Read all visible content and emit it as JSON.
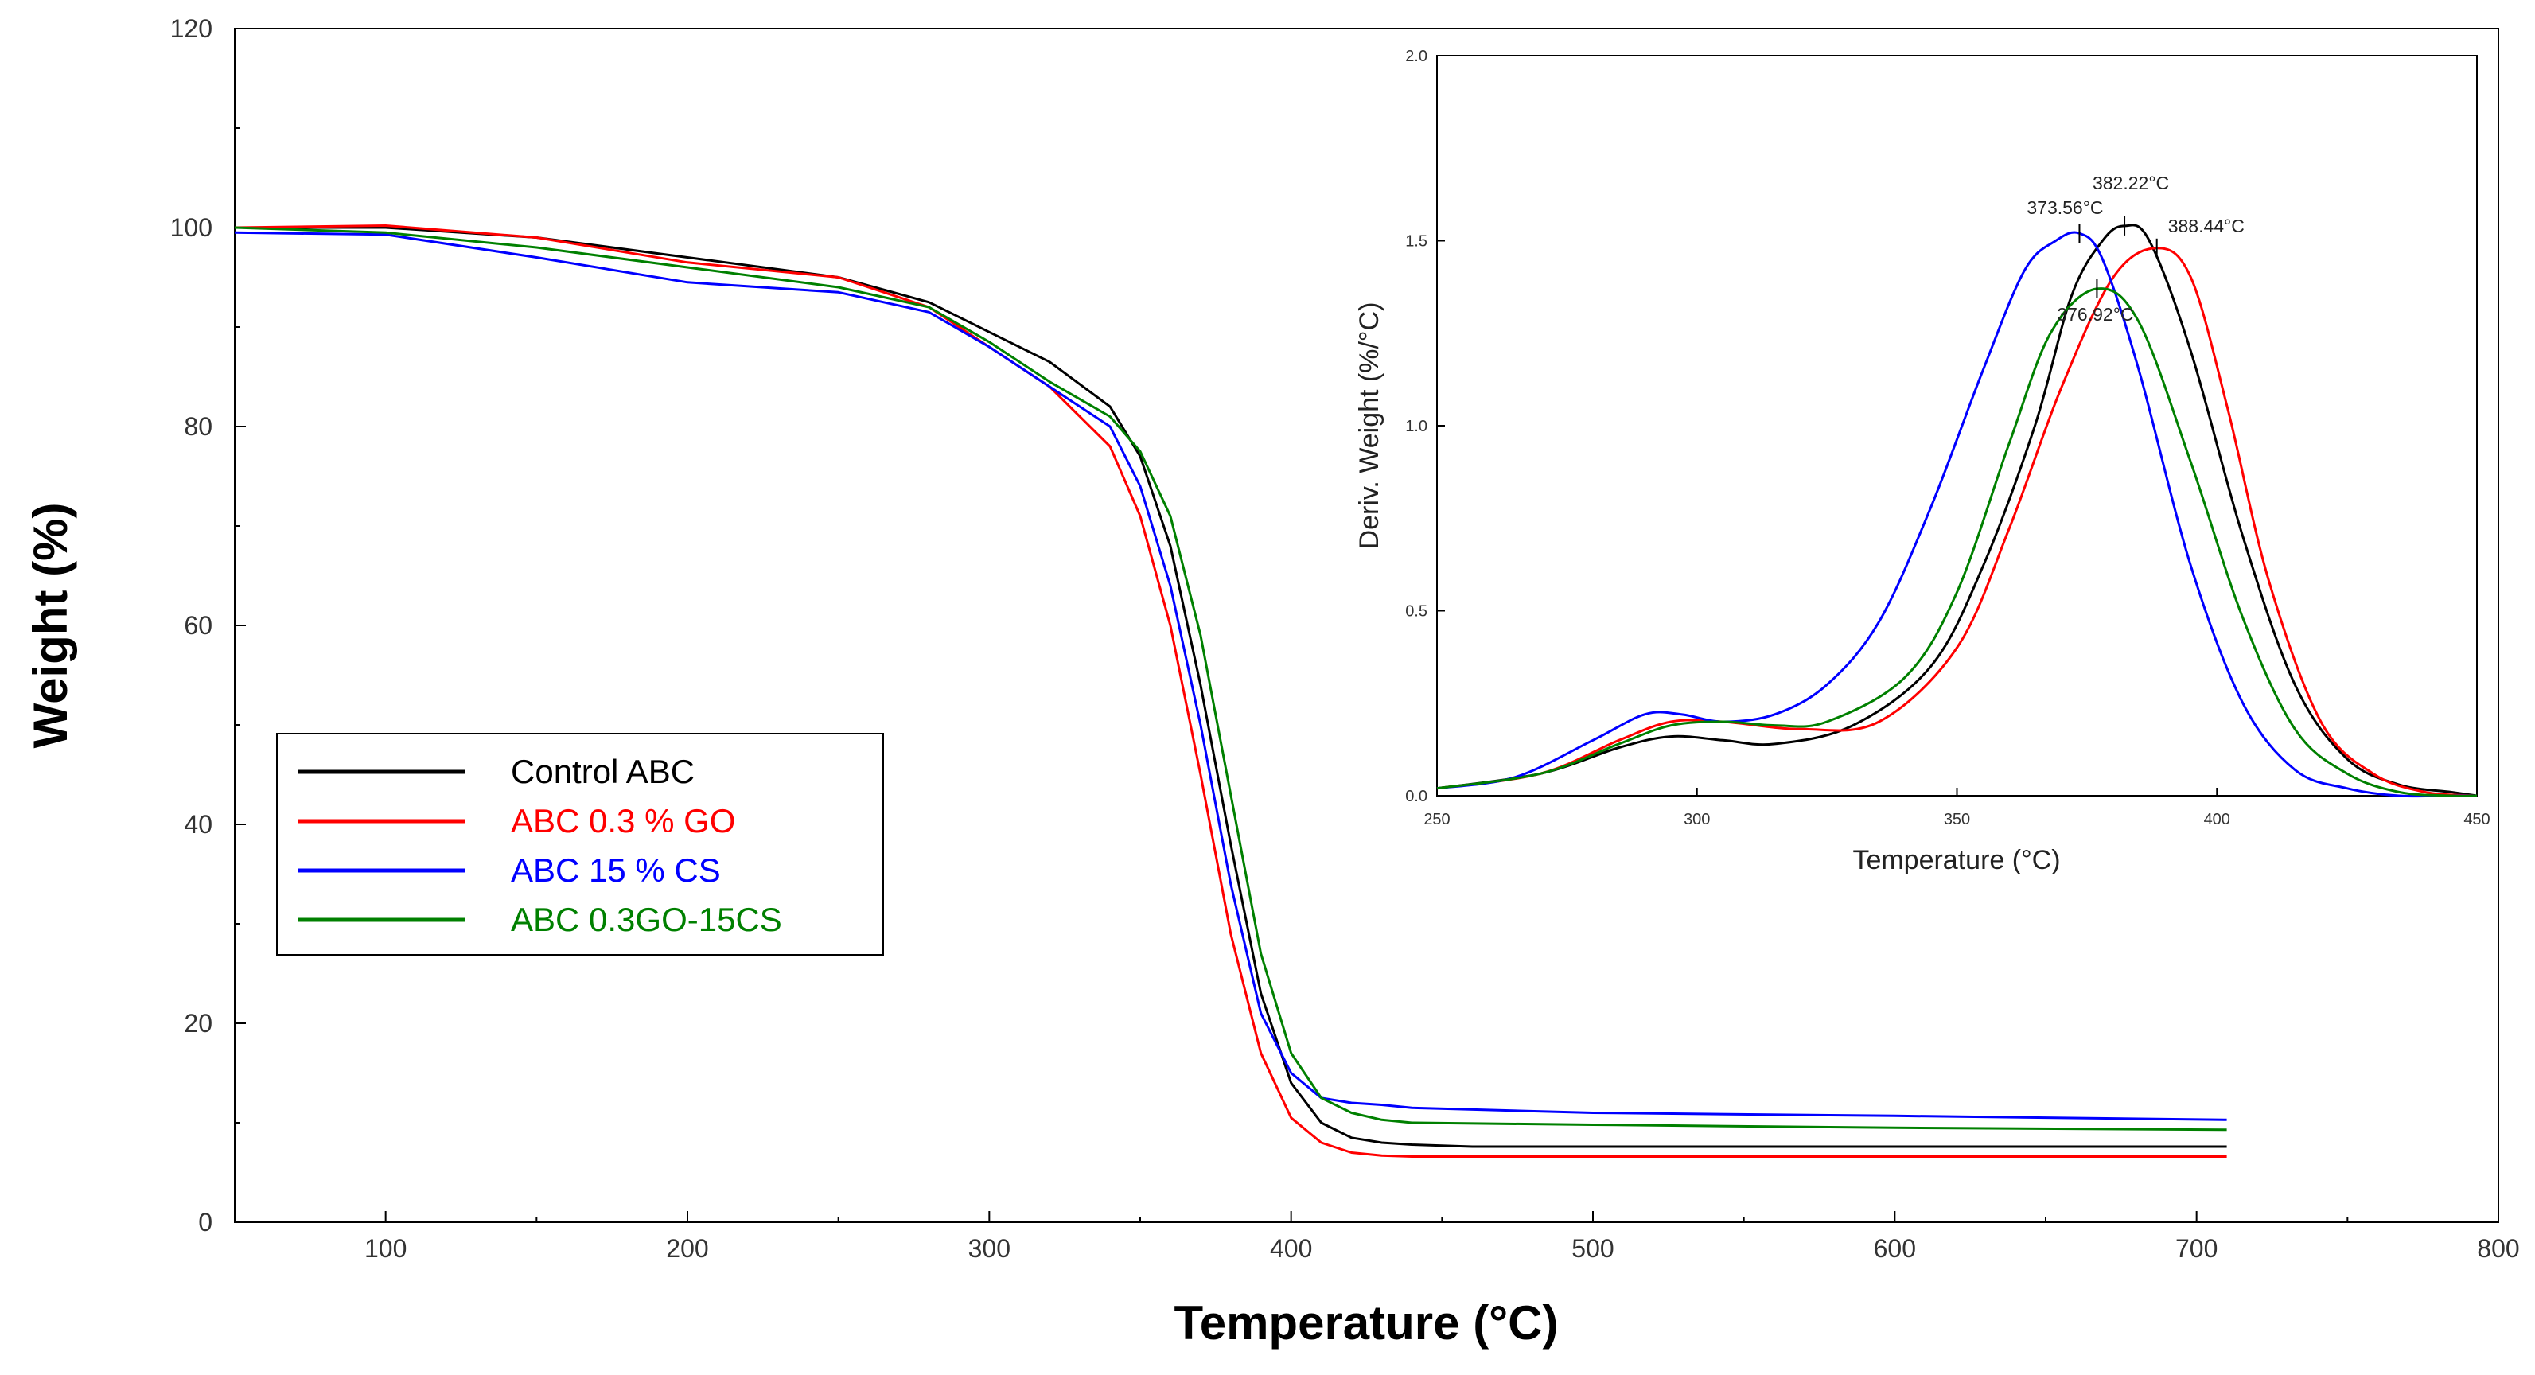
{
  "chart_data": [
    {
      "type": "line",
      "title": "",
      "xlabel": "Temperature (°C)",
      "ylabel": "Weight (%)",
      "xlim": [
        50,
        800
      ],
      "ylim": [
        0,
        120
      ],
      "xticks": [
        100,
        200,
        300,
        400,
        500,
        600,
        700,
        800
      ],
      "yticks": [
        0,
        20,
        40,
        60,
        80,
        100,
        120
      ],
      "legend_position": "middle-left",
      "series": [
        {
          "name": "Control ABC",
          "color": "#000000",
          "x": [
            50,
            100,
            150,
            200,
            250,
            280,
            300,
            320,
            340,
            350,
            360,
            370,
            380,
            390,
            400,
            410,
            420,
            430,
            440,
            460,
            710
          ],
          "y": [
            100,
            100,
            99,
            97,
            95,
            92.5,
            89.5,
            86.5,
            82,
            77,
            68,
            54,
            38,
            23,
            14,
            10,
            8.5,
            8,
            7.8,
            7.6,
            7.6
          ]
        },
        {
          "name": "ABC 0.3 % GO",
          "color": "#ff0000",
          "x": [
            50,
            100,
            150,
            200,
            250,
            280,
            300,
            320,
            340,
            350,
            360,
            370,
            380,
            390,
            400,
            410,
            420,
            430,
            440,
            460,
            710
          ],
          "y": [
            100,
            100.2,
            99,
            96.5,
            95,
            92,
            88,
            84,
            78,
            71,
            60,
            45,
            29,
            17,
            10.5,
            8,
            7,
            6.7,
            6.6,
            6.6,
            6.6
          ]
        },
        {
          "name": "ABC 15 % CS",
          "color": "#0000ff",
          "x": [
            50,
            100,
            150,
            200,
            250,
            280,
            300,
            320,
            340,
            350,
            360,
            370,
            380,
            390,
            400,
            410,
            420,
            430,
            440,
            500,
            600,
            710
          ],
          "y": [
            99.5,
            99.3,
            97,
            94.5,
            93.5,
            91.5,
            88,
            84,
            80,
            74,
            64,
            50,
            34,
            21,
            15,
            12.5,
            12,
            11.8,
            11.5,
            11,
            10.7,
            10.3
          ]
        },
        {
          "name": "ABC 0.3GO-15CS",
          "color": "#008000",
          "x": [
            50,
            100,
            150,
            200,
            250,
            280,
            300,
            320,
            340,
            350,
            360,
            370,
            380,
            390,
            400,
            410,
            420,
            430,
            440,
            500,
            600,
            710
          ],
          "y": [
            100,
            99.5,
            98,
            96,
            94,
            92,
            88.5,
            84.5,
            81,
            77.5,
            71,
            59,
            43,
            27,
            17,
            12.5,
            11,
            10.3,
            10,
            9.8,
            9.5,
            9.3
          ]
        }
      ]
    },
    {
      "type": "line",
      "title": "",
      "xlabel": "Temperature (°C)",
      "ylabel": "Deriv. Weight (%/°C)",
      "xlim": [
        250,
        450
      ],
      "ylim": [
        0,
        2.0
      ],
      "xticks": [
        250,
        300,
        350,
        400,
        450
      ],
      "yticks": [
        0.0,
        0.5,
        1.0,
        1.5,
        2.0
      ],
      "series": [
        {
          "name": "Control ABC",
          "color": "#000000",
          "x": [
            250,
            270,
            285,
            295,
            305,
            315,
            330,
            345,
            355,
            365,
            372,
            378,
            382.22,
            387,
            395,
            405,
            415,
            425,
            435,
            445,
            450
          ],
          "y": [
            0.02,
            0.06,
            0.13,
            0.16,
            0.15,
            0.14,
            0.19,
            0.35,
            0.62,
            1.0,
            1.35,
            1.5,
            1.54,
            1.5,
            1.2,
            0.7,
            0.3,
            0.1,
            0.03,
            0.01,
            0.0
          ]
        },
        {
          "name": "ABC 0.3 % GO",
          "color": "#ff0000",
          "x": [
            250,
            270,
            285,
            295,
            305,
            320,
            335,
            350,
            360,
            370,
            380,
            388.44,
            395,
            402,
            410,
            420,
            430,
            440,
            450
          ],
          "y": [
            0.02,
            0.06,
            0.15,
            0.2,
            0.2,
            0.18,
            0.2,
            0.4,
            0.72,
            1.1,
            1.4,
            1.48,
            1.4,
            1.05,
            0.58,
            0.2,
            0.06,
            0.01,
            0.0
          ]
        },
        {
          "name": "ABC 15 % CS",
          "color": "#0000ff",
          "x": [
            250,
            265,
            280,
            290,
            297,
            305,
            315,
            325,
            335,
            345,
            355,
            363,
            369,
            373.56,
            378,
            385,
            395,
            405,
            415,
            425,
            435,
            445,
            450
          ],
          "y": [
            0.02,
            0.05,
            0.15,
            0.22,
            0.22,
            0.2,
            0.22,
            0.3,
            0.47,
            0.78,
            1.15,
            1.42,
            1.5,
            1.52,
            1.45,
            1.15,
            0.62,
            0.25,
            0.07,
            0.02,
            0.0,
            0.0,
            0.0
          ]
        },
        {
          "name": "ABC 0.3GO-15CS",
          "color": "#008000",
          "x": [
            250,
            270,
            285,
            295,
            305,
            315,
            325,
            340,
            350,
            360,
            368,
            376.92,
            385,
            395,
            405,
            415,
            425,
            435,
            445,
            450
          ],
          "y": [
            0.02,
            0.06,
            0.14,
            0.19,
            0.2,
            0.19,
            0.2,
            0.32,
            0.55,
            0.95,
            1.25,
            1.37,
            1.28,
            0.9,
            0.48,
            0.18,
            0.06,
            0.01,
            0.0,
            0.0
          ]
        }
      ],
      "annotations": [
        {
          "text": "373.56°C",
          "x": 373.56,
          "y": 1.52,
          "series": "ABC 15 % CS"
        },
        {
          "text": "382.22°C",
          "x": 382.22,
          "y": 1.54,
          "series": "Control ABC"
        },
        {
          "text": "388.44°C",
          "x": 388.44,
          "y": 1.48,
          "series": "ABC 0.3 % GO"
        },
        {
          "text": "376.92°C",
          "x": 376.92,
          "y": 1.37,
          "series": "ABC 0.3GO-15CS"
        }
      ]
    }
  ]
}
